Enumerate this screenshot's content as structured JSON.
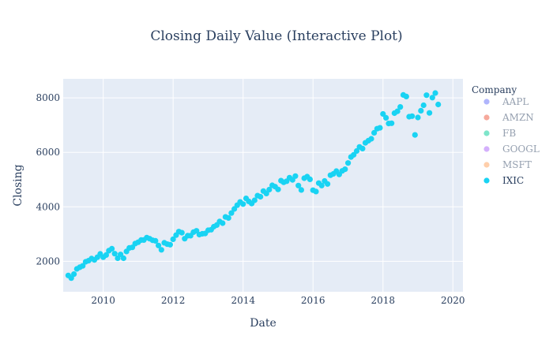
{
  "chart_data": {
    "type": "scatter",
    "title": "Closing Daily Value (Interactive Plot)",
    "xlabel": "Date",
    "ylabel": "Closing",
    "x_axis_type": "date",
    "xlim": [
      "2008-11-09",
      "2020-04-15"
    ],
    "ylim": [
      880,
      8700
    ],
    "x_ticks": [
      "2010",
      "2012",
      "2014",
      "2016",
      "2018",
      "2020"
    ],
    "y_ticks": [
      "2000",
      "4000",
      "6000",
      "8000"
    ],
    "y_tick_values": [
      2000,
      4000,
      6000,
      8000
    ],
    "grid": true,
    "plot_background": "#e5ecf6",
    "legend": {
      "title": "Company",
      "placement": "right",
      "entries": [
        {
          "name": "AAPL",
          "color": "#636efa",
          "visible": false
        },
        {
          "name": "AMZN",
          "color": "#ef553b",
          "visible": false
        },
        {
          "name": "FB",
          "color": "#00cc96",
          "visible": false
        },
        {
          "name": "GOOGL",
          "color": "#ab63fa",
          "visible": false
        },
        {
          "name": "MSFT",
          "color": "#ffa15a",
          "visible": false
        },
        {
          "name": "IXIC",
          "color": "#19d3f3",
          "visible": true
        }
      ]
    },
    "series": [
      {
        "name": "IXIC",
        "color": "#19d3f3",
        "points": [
          [
            "2009-01-01",
            1480
          ],
          [
            "2009-02-01",
            1380
          ],
          [
            "2009-03-01",
            1530
          ],
          [
            "2009-04-01",
            1720
          ],
          [
            "2009-05-01",
            1780
          ],
          [
            "2009-06-01",
            1830
          ],
          [
            "2009-07-01",
            1980
          ],
          [
            "2009-08-01",
            2020
          ],
          [
            "2009-09-01",
            2100
          ],
          [
            "2009-10-01",
            2050
          ],
          [
            "2009-11-01",
            2150
          ],
          [
            "2009-12-01",
            2270
          ],
          [
            "2010-01-01",
            2150
          ],
          [
            "2010-02-01",
            2230
          ],
          [
            "2010-03-01",
            2390
          ],
          [
            "2010-04-01",
            2460
          ],
          [
            "2010-05-01",
            2280
          ],
          [
            "2010-06-01",
            2110
          ],
          [
            "2010-07-01",
            2250
          ],
          [
            "2010-08-01",
            2110
          ],
          [
            "2010-09-01",
            2360
          ],
          [
            "2010-10-01",
            2490
          ],
          [
            "2010-11-01",
            2510
          ],
          [
            "2010-12-01",
            2650
          ],
          [
            "2011-01-01",
            2700
          ],
          [
            "2011-02-01",
            2780
          ],
          [
            "2011-03-01",
            2780
          ],
          [
            "2011-04-01",
            2870
          ],
          [
            "2011-05-01",
            2830
          ],
          [
            "2011-06-01",
            2770
          ],
          [
            "2011-07-01",
            2750
          ],
          [
            "2011-08-01",
            2580
          ],
          [
            "2011-09-01",
            2420
          ],
          [
            "2011-10-01",
            2680
          ],
          [
            "2011-11-01",
            2630
          ],
          [
            "2011-12-01",
            2610
          ],
          [
            "2012-01-01",
            2810
          ],
          [
            "2012-02-01",
            2960
          ],
          [
            "2012-03-01",
            3090
          ],
          [
            "2012-04-01",
            3050
          ],
          [
            "2012-05-01",
            2830
          ],
          [
            "2012-06-01",
            2940
          ],
          [
            "2012-07-01",
            2940
          ],
          [
            "2012-08-01",
            3070
          ],
          [
            "2012-09-01",
            3120
          ],
          [
            "2012-10-01",
            2980
          ],
          [
            "2012-11-01",
            3010
          ],
          [
            "2012-12-01",
            3020
          ],
          [
            "2013-01-01",
            3140
          ],
          [
            "2013-02-01",
            3160
          ],
          [
            "2013-03-01",
            3270
          ],
          [
            "2013-04-01",
            3330
          ],
          [
            "2013-05-01",
            3460
          ],
          [
            "2013-06-01",
            3400
          ],
          [
            "2013-07-01",
            3630
          ],
          [
            "2013-08-01",
            3590
          ],
          [
            "2013-09-01",
            3770
          ],
          [
            "2013-10-01",
            3920
          ],
          [
            "2013-11-01",
            4060
          ],
          [
            "2013-12-01",
            4180
          ],
          [
            "2014-01-01",
            4100
          ],
          [
            "2014-02-01",
            4310
          ],
          [
            "2014-03-01",
            4200
          ],
          [
            "2014-04-01",
            4120
          ],
          [
            "2014-05-01",
            4240
          ],
          [
            "2014-06-01",
            4410
          ],
          [
            "2014-07-01",
            4370
          ],
          [
            "2014-08-01",
            4580
          ],
          [
            "2014-09-01",
            4490
          ],
          [
            "2014-10-01",
            4630
          ],
          [
            "2014-11-01",
            4790
          ],
          [
            "2014-12-01",
            4740
          ],
          [
            "2015-01-01",
            4640
          ],
          [
            "2015-02-01",
            4960
          ],
          [
            "2015-03-01",
            4900
          ],
          [
            "2015-04-01",
            4940
          ],
          [
            "2015-05-01",
            5070
          ],
          [
            "2015-06-01",
            4990
          ],
          [
            "2015-07-01",
            5130
          ],
          [
            "2015-08-01",
            4780
          ],
          [
            "2015-09-01",
            4620
          ],
          [
            "2015-10-01",
            5050
          ],
          [
            "2015-11-01",
            5110
          ],
          [
            "2015-12-01",
            5010
          ],
          [
            "2016-01-01",
            4610
          ],
          [
            "2016-02-01",
            4560
          ],
          [
            "2016-03-01",
            4870
          ],
          [
            "2016-04-01",
            4780
          ],
          [
            "2016-05-01",
            4950
          ],
          [
            "2016-06-01",
            4840
          ],
          [
            "2016-07-01",
            5160
          ],
          [
            "2016-08-01",
            5210
          ],
          [
            "2016-09-01",
            5310
          ],
          [
            "2016-10-01",
            5190
          ],
          [
            "2016-11-01",
            5320
          ],
          [
            "2016-12-01",
            5380
          ],
          [
            "2017-01-01",
            5610
          ],
          [
            "2017-02-01",
            5830
          ],
          [
            "2017-03-01",
            5910
          ],
          [
            "2017-04-01",
            6050
          ],
          [
            "2017-05-01",
            6200
          ],
          [
            "2017-06-01",
            6140
          ],
          [
            "2017-07-01",
            6350
          ],
          [
            "2017-08-01",
            6430
          ],
          [
            "2017-09-01",
            6500
          ],
          [
            "2017-10-01",
            6720
          ],
          [
            "2017-11-01",
            6870
          ],
          [
            "2017-12-01",
            6900
          ],
          [
            "2018-01-01",
            7410
          ],
          [
            "2018-02-01",
            7270
          ],
          [
            "2018-03-01",
            7060
          ],
          [
            "2018-04-01",
            7070
          ],
          [
            "2018-05-01",
            7440
          ],
          [
            "2018-06-01",
            7510
          ],
          [
            "2018-07-01",
            7670
          ],
          [
            "2018-08-01",
            8110
          ],
          [
            "2018-09-01",
            8050
          ],
          [
            "2018-10-01",
            7310
          ],
          [
            "2018-11-01",
            7330
          ],
          [
            "2018-12-01",
            6640
          ],
          [
            "2019-01-01",
            7280
          ],
          [
            "2019-02-01",
            7530
          ],
          [
            "2019-03-01",
            7730
          ],
          [
            "2019-04-01",
            8100
          ],
          [
            "2019-05-01",
            7450
          ],
          [
            "2019-06-01",
            8010
          ],
          [
            "2019-07-01",
            8180
          ],
          [
            "2019-08-01",
            7760
          ]
        ]
      }
    ]
  }
}
